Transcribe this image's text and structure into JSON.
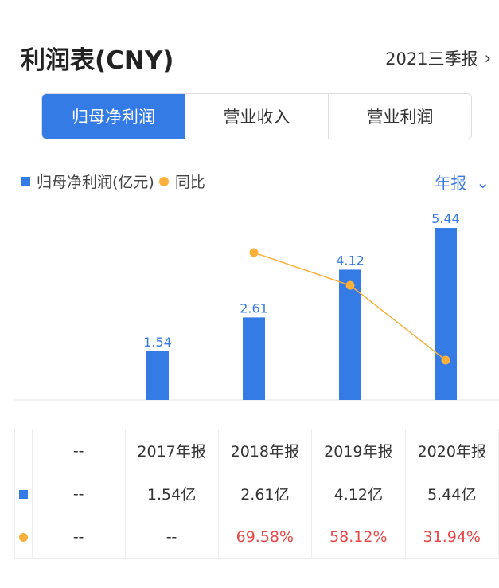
{
  "header": {
    "title": "利润表(CNY)",
    "period": "2021三季报"
  },
  "tabs": [
    {
      "label": "归母净利润",
      "active": true
    },
    {
      "label": "营业收入",
      "active": false
    },
    {
      "label": "营业利润",
      "active": false
    }
  ],
  "legend": {
    "bar": "归母净利润(亿元)",
    "line": "同比"
  },
  "freq_select": "年报",
  "colors": {
    "bar": "#347be6",
    "line": "#fbb03b",
    "negative_pct": "#e84848"
  },
  "chart_data": {
    "type": "bar",
    "categories": [
      "",
      "2017年报",
      "2018年报",
      "2019年报",
      "2020年报"
    ],
    "series": [
      {
        "name": "归母净利润(亿元)",
        "type": "bar",
        "values": [
          null,
          1.54,
          2.61,
          4.12,
          5.44
        ]
      },
      {
        "name": "同比",
        "type": "line",
        "values": [
          null,
          null,
          69.58,
          58.12,
          31.94
        ]
      }
    ]
  },
  "table": {
    "header": [
      "--",
      "2017年报",
      "2018年报",
      "2019年报",
      "2020年报"
    ],
    "rows": [
      [
        "--",
        "1.54亿",
        "2.61亿",
        "4.12亿",
        "5.44亿"
      ],
      [
        "--",
        "--",
        "69.58%",
        "58.12%",
        "31.94%"
      ]
    ]
  }
}
